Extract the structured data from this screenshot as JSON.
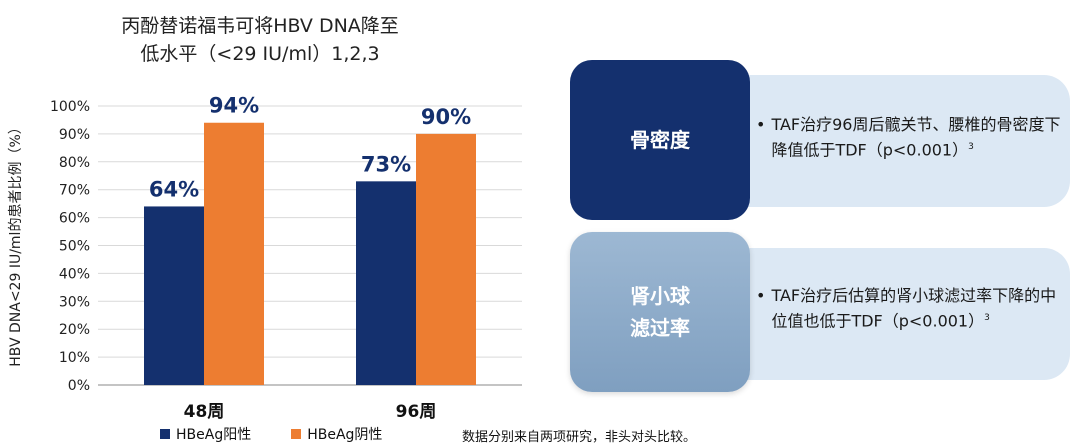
{
  "chart_data": {
    "type": "bar",
    "title_line1": "丙酚替诺福韦可将HBV DNA降至",
    "title_line2": "低水平（<29 IU/ml）1,2,3",
    "ylabel": "HBV DNA<29 IU/ml的患者比例（%）",
    "xlabel": "",
    "ylim": [
      0,
      100
    ],
    "yticks": [
      "0%",
      "10%",
      "20%",
      "30%",
      "40%",
      "50%",
      "60%",
      "70%",
      "80%",
      "90%",
      "100%"
    ],
    "categories": [
      "48周",
      "96周"
    ],
    "series": [
      {
        "name": "HBeAg阳性",
        "values": [
          64,
          73
        ],
        "labels": [
          "64%",
          "73%"
        ],
        "color": "#14306e"
      },
      {
        "name": "HBeAg阴性",
        "values": [
          94,
          90
        ],
        "labels": [
          "94%",
          "90%"
        ],
        "color": "#ed7d31"
      }
    ],
    "grid": true,
    "legend_position": "bottom"
  },
  "footnote": "数据分别来自两项研究，非头对头比较。",
  "cards": [
    {
      "heading": "骨密度",
      "bullet": "•",
      "text": "TAF治疗96周后髋关节、腰椎的骨密度下降值低于TDF（p<0.001）",
      "sup": "3"
    },
    {
      "heading_line1": "肾小球",
      "heading_line2": "滤过率",
      "bullet": "•",
      "text": "TAF治疗后估算的肾小球滤过率下降的中位值也低于TDF（p<0.001）",
      "sup": "3"
    }
  ]
}
